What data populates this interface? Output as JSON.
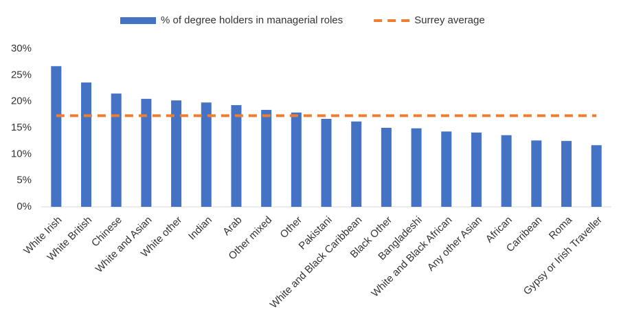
{
  "chart_data": {
    "type": "bar",
    "categories": [
      "White Irish",
      "White British",
      "Chinese",
      "White and Asian",
      "White other",
      "Indian",
      "Arab",
      "Other mixed",
      "Other",
      "Pakistani",
      "White and Black Caribbean",
      "Black Other",
      "Bangladeshi",
      "White and Black African",
      "Any other Asian",
      "African",
      "Carribean",
      "Roma",
      "Gypsy or Irish Traveller"
    ],
    "series": [
      {
        "name": "% of degree holders in managerial roles",
        "type": "bar",
        "color": "#4472c4",
        "values": [
          26.7,
          23.6,
          21.5,
          20.5,
          20.2,
          19.8,
          19.3,
          18.4,
          17.9,
          16.7,
          16.2,
          15.0,
          14.9,
          14.3,
          14.1,
          13.6,
          12.6,
          12.5,
          11.7
        ]
      },
      {
        "name": "Surrey average",
        "type": "line",
        "dashed": true,
        "color": "#ed7d31",
        "values": [
          17.3,
          17.3,
          17.3,
          17.3,
          17.3,
          17.3,
          17.3,
          17.3,
          17.3,
          17.3,
          17.3,
          17.3,
          17.3,
          17.3,
          17.3,
          17.3,
          17.3,
          17.3,
          17.3
        ]
      }
    ],
    "ylim": [
      0,
      30
    ],
    "yticks": [
      {
        "value": 0,
        "label": "0%"
      },
      {
        "value": 5,
        "label": "5%"
      },
      {
        "value": 10,
        "label": "10%"
      },
      {
        "value": 15,
        "label": "15%"
      },
      {
        "value": 20,
        "label": "20%"
      },
      {
        "value": 25,
        "label": "25%"
      },
      {
        "value": 30,
        "label": "30%"
      }
    ],
    "grid": false,
    "legend": "top"
  }
}
